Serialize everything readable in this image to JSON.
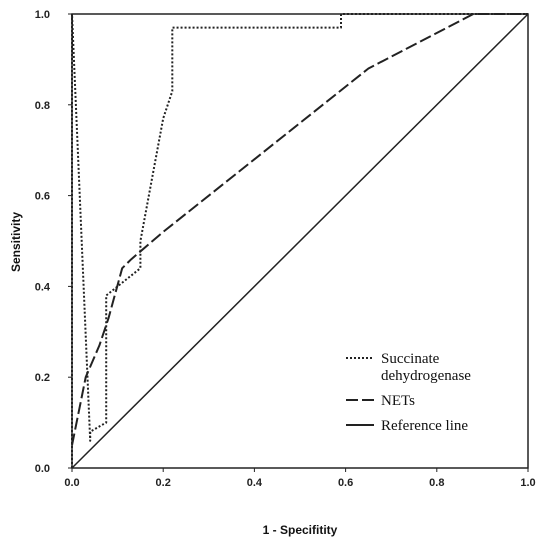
{
  "chart_data": {
    "type": "line",
    "xlabel": "1 - Specifitity",
    "ylabel": "Sensitivity",
    "xlim": [
      0,
      1
    ],
    "ylim": [
      0,
      1
    ],
    "x_ticks": [
      "0.0",
      "0.2",
      "0.4",
      "0.6",
      "0.8",
      "1.0"
    ],
    "y_ticks": [
      "0.0",
      "0.2",
      "0.4",
      "0.6",
      "0.8",
      "1.0"
    ],
    "grid": false,
    "legend_position": "bottom-right",
    "series": [
      {
        "name": "Succinate dehydrogenase",
        "style": "dotted",
        "color": "#222222",
        "x": [
          0,
          0,
          0.04,
          0.04,
          0.075,
          0.075,
          0.15,
          0.15,
          0.2,
          0.22,
          0.22,
          0.59,
          0.59,
          1.0
        ],
        "y": [
          0,
          1.0,
          0.06,
          0.08,
          0.1,
          0.38,
          0.44,
          0.5,
          0.77,
          0.83,
          0.97,
          0.97,
          1.0,
          1.0
        ]
      },
      {
        "name": "NETs",
        "style": "dashed",
        "color": "#222222",
        "x": [
          0,
          0.03,
          0.06,
          0.08,
          0.11,
          0.13,
          0.2,
          0.4,
          0.65,
          0.88,
          1.0
        ],
        "y": [
          0.05,
          0.2,
          0.27,
          0.33,
          0.44,
          0.46,
          0.52,
          0.68,
          0.88,
          1.0,
          1.0
        ]
      },
      {
        "name": "Reference line",
        "style": "solid",
        "color": "#222222",
        "x": [
          0,
          1
        ],
        "y": [
          0,
          1
        ]
      }
    ],
    "legend": [
      {
        "label_lines": [
          "Succinate",
          "dehydrogenase"
        ],
        "style": "dotted"
      },
      {
        "label_lines": [
          "NETs"
        ],
        "style": "dashed"
      },
      {
        "label_lines": [
          "Reference line"
        ],
        "style": "solid"
      }
    ]
  }
}
